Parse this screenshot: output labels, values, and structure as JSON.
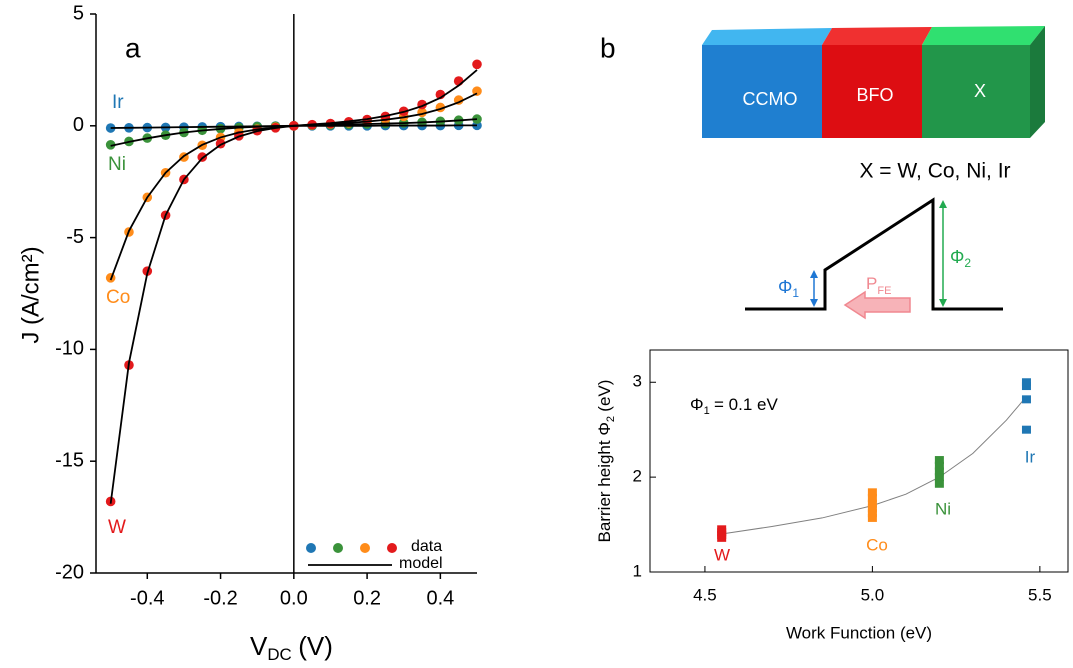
{
  "chart_data": [
    {
      "type": "scatter",
      "label": "a",
      "xlabel": {
        "main": "V",
        "sub": "DC",
        "unit": "(V)"
      },
      "ylabel": "J (A/cm²)",
      "x": [
        -0.5,
        -0.45,
        -0.4,
        -0.35,
        -0.3,
        -0.25,
        -0.2,
        -0.15,
        -0.1,
        -0.05,
        0,
        0.05,
        0.1,
        0.15,
        0.2,
        0.25,
        0.3,
        0.35,
        0.4,
        0.45,
        0.5
      ],
      "xlim": [
        -0.54,
        0.5
      ],
      "xticks": [
        -0.4,
        -0.2,
        {
          "value": 0,
          "label": "0.0"
        },
        0.2,
        0.4
      ],
      "ylim": [
        -20,
        5
      ],
      "yticks": [
        -20,
        -15,
        -10,
        -5,
        0,
        5
      ],
      "zero_line": true,
      "series": [
        {
          "name": "Ir",
          "color": "#1f77b4",
          "values": [
            -0.1,
            -0.09,
            -0.08,
            -0.07,
            -0.06,
            -0.05,
            -0.04,
            -0.03,
            -0.02,
            -0.01,
            0,
            0,
            0,
            0,
            0,
            0.01,
            0.01,
            0.01,
            0.01,
            0.02,
            0.02
          ]
        },
        {
          "name": "Ni",
          "color": "#3a923a",
          "values": [
            -0.85,
            -0.7,
            -0.55,
            -0.42,
            -0.3,
            -0.2,
            -0.13,
            -0.08,
            -0.04,
            -0.02,
            0,
            0.02,
            0.04,
            0.06,
            0.08,
            0.1,
            0.13,
            0.16,
            0.2,
            0.25,
            0.3
          ]
        },
        {
          "name": "Co",
          "color": "#ff8c1a",
          "values": [
            -6.8,
            -4.75,
            -3.2,
            -2.1,
            -1.4,
            -0.87,
            -0.52,
            -0.3,
            -0.15,
            -0.06,
            0,
            0.04,
            0.08,
            0.13,
            0.2,
            0.3,
            0.42,
            0.6,
            0.82,
            1.15,
            1.55
          ]
        },
        {
          "name": "W",
          "color": "#e31a1c",
          "values": [
            -16.8,
            -10.7,
            -6.5,
            -4.0,
            -2.4,
            -1.4,
            -0.8,
            -0.45,
            -0.22,
            -0.09,
            0,
            0.05,
            0.1,
            0.18,
            0.28,
            0.42,
            0.65,
            0.95,
            1.4,
            2.0,
            2.75
          ]
        }
      ],
      "model": {
        "name": "model",
        "color": "#000000",
        "curves": [
          [
            -0.1,
            -0.09,
            -0.08,
            -0.07,
            -0.06,
            -0.05,
            -0.04,
            -0.03,
            -0.02,
            -0.01,
            0,
            0,
            0,
            0,
            0,
            0.01,
            0.01,
            0.01,
            0.01,
            0.02,
            0.02
          ],
          [
            -0.9,
            -0.72,
            -0.56,
            -0.42,
            -0.3,
            -0.21,
            -0.14,
            -0.08,
            -0.04,
            -0.02,
            0,
            0.02,
            0.04,
            0.06,
            0.08,
            0.1,
            0.12,
            0.15,
            0.19,
            0.24,
            0.3
          ],
          [
            -6.9,
            -4.7,
            -3.2,
            -2.1,
            -1.35,
            -0.85,
            -0.52,
            -0.3,
            -0.16,
            -0.07,
            0,
            0.04,
            0.08,
            0.13,
            0.19,
            0.27,
            0.38,
            0.53,
            0.75,
            1.05,
            1.45
          ],
          [
            -16.9,
            -10.6,
            -6.6,
            -4.0,
            -2.4,
            -1.45,
            -0.85,
            -0.48,
            -0.24,
            -0.1,
            0,
            0.06,
            0.12,
            0.2,
            0.3,
            0.44,
            0.62,
            0.88,
            1.25,
            1.8,
            2.5
          ]
        ]
      },
      "data_legend": "data",
      "legend": "lower right"
    },
    {
      "type": "scatter",
      "xlabel": "Work Function (eV)",
      "ylabel": {
        "main": "Barrier height Φ",
        "sub": "2",
        "unit": "(eV)"
      },
      "annotation": {
        "main": "Φ",
        "sub": "1",
        "unit": "= 0.1 eV"
      },
      "xlim": [
        4.336,
        5.584
      ],
      "xticks": [
        4.5,
        {
          "value": 5,
          "label": "5.0"
        },
        5.5
      ],
      "ylim": [
        1,
        3.34
      ],
      "yticks": [
        1,
        2,
        3
      ],
      "series": [
        {
          "name": "W",
          "color": "#e31a1c",
          "x": [
            4.55,
            4.55,
            4.55,
            4.55
          ],
          "values": [
            1.36,
            1.39,
            1.42,
            1.45
          ]
        },
        {
          "name": "Co",
          "color": "#ff8c1a",
          "x": [
            5,
            5,
            5,
            5,
            5,
            5
          ],
          "values": [
            1.57,
            1.62,
            1.67,
            1.72,
            1.78,
            1.84
          ]
        },
        {
          "name": "Ni",
          "color": "#3a923a",
          "x": [
            5.2,
            5.2,
            5.2,
            5.2,
            5.2
          ],
          "values": [
            1.93,
            2.0,
            2.06,
            2.12,
            2.18
          ]
        },
        {
          "name": "Ir",
          "color": "#1f77b4",
          "x": [
            5.46,
            5.46,
            5.46,
            5.46
          ],
          "values": [
            2.5,
            2.82,
            2.96,
            3.0
          ]
        }
      ],
      "fit": {
        "color": "#808080",
        "x": [
          4.55,
          4.7,
          4.85,
          5.0,
          5.1,
          5.2,
          5.3,
          5.4,
          5.46
        ],
        "values": [
          1.4,
          1.48,
          1.57,
          1.7,
          1.82,
          2.0,
          2.25,
          2.6,
          2.85
        ]
      }
    }
  ],
  "diagram": {
    "label": "b",
    "layers": [
      "CCMO",
      "BFO",
      "X"
    ],
    "formula": "X = W, Co, Ni, Ir",
    "phi1": {
      "main": "Φ",
      "sub": "1"
    },
    "phi2": {
      "main": "Φ",
      "sub": "2"
    },
    "polarization": {
      "main": "P",
      "sub": "FE"
    }
  }
}
